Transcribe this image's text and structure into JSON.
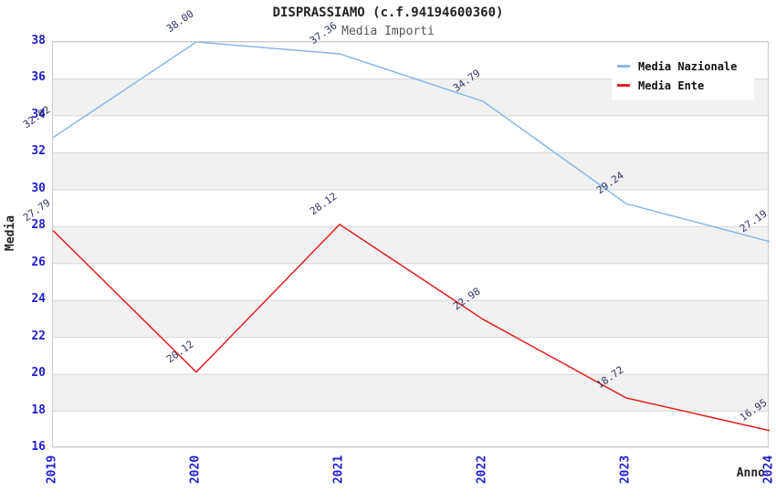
{
  "chart_data": {
    "type": "line",
    "title": "DISPRASSIAMO (c.f.94194600360)",
    "subtitle": "Media Importi",
    "xlabel": "Anno",
    "ylabel": "Media",
    "categories": [
      "2019",
      "2020",
      "2021",
      "2022",
      "2023",
      "2024"
    ],
    "series": [
      {
        "name": "Media Nazionale",
        "color": "#8ab6e4",
        "values": [
          32.82,
          38.0,
          37.36,
          34.79,
          29.24,
          27.19
        ],
        "point_labels": [
          "32.82",
          "38.00",
          "37.36",
          "34.79",
          "29.24",
          "27.19"
        ]
      },
      {
        "name": "Media Ente",
        "color": "#e02222",
        "values": [
          27.79,
          20.12,
          28.12,
          22.98,
          18.72,
          16.95
        ],
        "point_labels": [
          "27.79",
          "20.12",
          "28.12",
          "22.98",
          "18.72",
          "16.95"
        ]
      }
    ],
    "ylim": [
      16,
      38
    ],
    "yticks": [
      16,
      18,
      20,
      22,
      24,
      26,
      28,
      30,
      32,
      34,
      36,
      38
    ],
    "grid": "horizontal",
    "band_fill": true,
    "legend_position": "top-right"
  },
  "colors": {
    "tick_label": "#2020cc",
    "data_label": "#333366",
    "grid_line": "#d7d7d7",
    "band_gray": "#f1f1f1",
    "plot_border": "#c9c9c9",
    "title": "#222222",
    "subtitle": "#555555"
  }
}
